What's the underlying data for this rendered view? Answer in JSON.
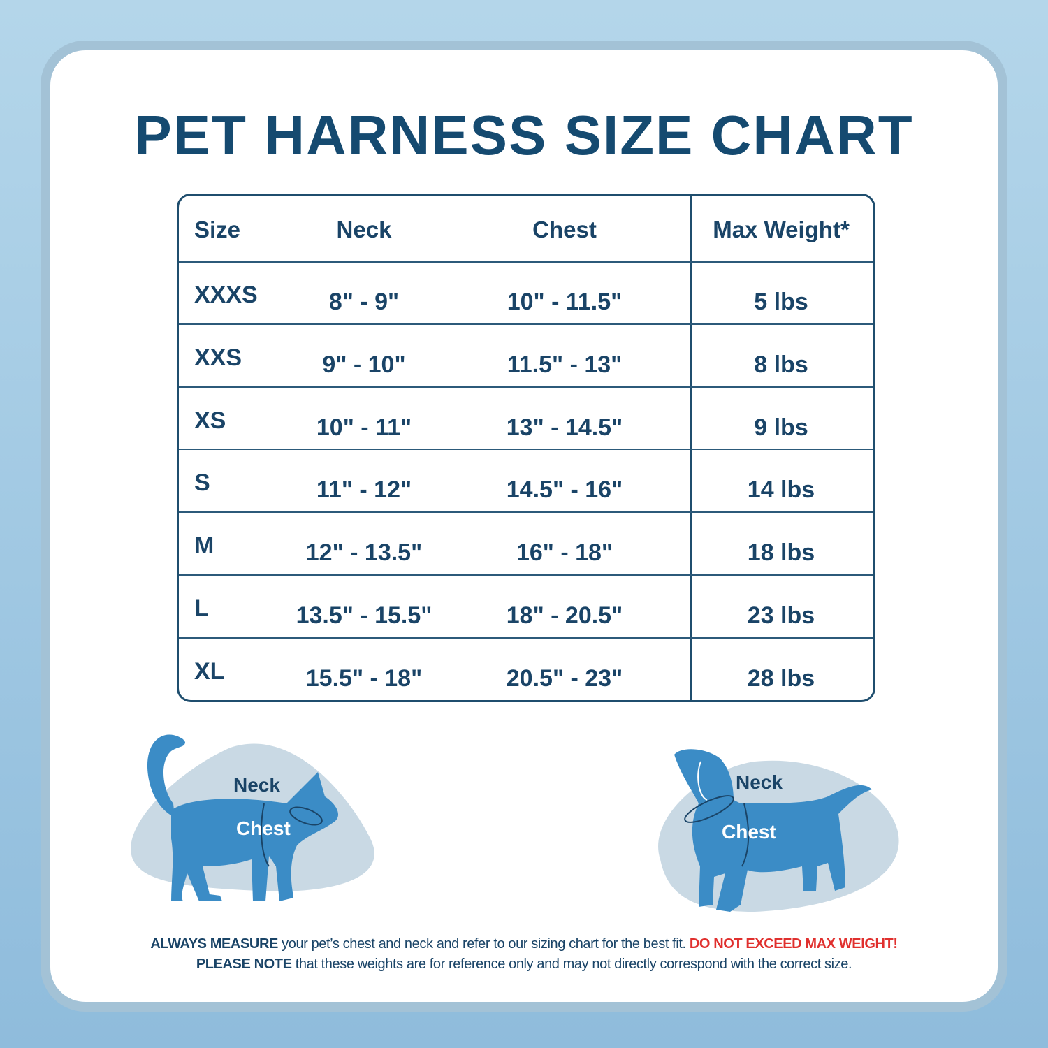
{
  "header": {
    "title": "PET HARNESS SIZE CHART"
  },
  "table": {
    "columns": [
      "Size",
      "Neck",
      "Chest",
      "Max Weight*"
    ],
    "rows": [
      [
        "XXXS",
        "8\" - 9\"",
        "10\" - 11.5\"",
        "5 lbs"
      ],
      [
        "XXS",
        "9\" - 10\"",
        "11.5\" - 13\"",
        "8 lbs"
      ],
      [
        "XS",
        "10\" - 11\"",
        "13\" - 14.5\"",
        "9 lbs"
      ],
      [
        "S",
        "11\" - 12\"",
        "14.5\" - 16\"",
        "14 lbs"
      ],
      [
        "M",
        "12\" - 13.5\"",
        "16\" - 18\"",
        "18 lbs"
      ],
      [
        "L",
        "13.5\" - 15.5\"",
        "18\" - 20.5\"",
        "23 lbs"
      ],
      [
        "XL",
        "15.5\" - 18\"",
        "20.5\" - 23\"",
        "28 lbs"
      ]
    ]
  },
  "illustrations": {
    "cat": {
      "neck": "Neck",
      "chest": "Chest"
    },
    "dog": {
      "neck": "Neck",
      "chest": "Chest"
    }
  },
  "footer": {
    "line1": {
      "bold": "ALWAYS MEASURE",
      "text": "your pet’s chest and neck and refer to our sizing chart for the best fit.",
      "warning": "DO NOT EXCEED MAX WEIGHT!"
    },
    "line2": {
      "bold": "PLEASE NOTE",
      "text": "that these weights are for reference only and may not directly correspond with the correct size."
    }
  }
}
